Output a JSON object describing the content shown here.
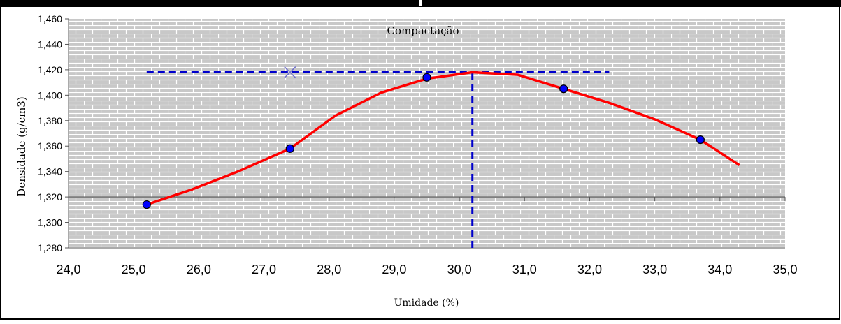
{
  "chart_data": {
    "type": "line",
    "title": "Compactação",
    "xlabel": "Umidade (%)",
    "ylabel": "Densidade (g/cm3)",
    "xlim": [
      24.0,
      35.0
    ],
    "ylim": [
      1.28,
      1.46
    ],
    "x_ticks": [
      24.0,
      25.0,
      26.0,
      27.0,
      28.0,
      29.0,
      30.0,
      31.0,
      32.0,
      33.0,
      34.0,
      35.0
    ],
    "y_ticks": [
      1.28,
      1.3,
      1.32,
      1.34,
      1.36,
      1.38,
      1.4,
      1.42,
      1.44,
      1.46
    ],
    "x_tick_labels": [
      "24,0",
      "25,0",
      "26,0",
      "27,0",
      "28,0",
      "29,0",
      "30,0",
      "31,0",
      "32,0",
      "33,0",
      "34,0",
      "35,0"
    ],
    "y_tick_labels": [
      "1,280",
      "1,300",
      "1,320",
      "1,340",
      "1,360",
      "1,380",
      "1,400",
      "1,420",
      "1,440",
      "1,460"
    ],
    "grid": false,
    "background": "brick-pattern",
    "series": [
      {
        "kind": "curve",
        "color": "#ff0000",
        "x": [
          25.2,
          25.9,
          26.6,
          27.4,
          28.1,
          28.8,
          29.5,
          30.2,
          30.9,
          31.6,
          32.3,
          33.0,
          33.7,
          34.3
        ],
        "y": [
          1.314,
          1.326,
          1.34,
          1.358,
          1.384,
          1.402,
          1.413,
          1.418,
          1.416,
          1.405,
          1.394,
          1.381,
          1.365,
          1.345
        ]
      },
      {
        "kind": "points",
        "marker_color": "#0000ff",
        "x": [
          25.2,
          27.4,
          29.5,
          31.6,
          33.7
        ],
        "y": [
          1.314,
          1.358,
          1.414,
          1.405,
          1.365
        ]
      },
      {
        "kind": "reference-line",
        "color": "#0000cc",
        "style": "dashed",
        "x": [
          25.2,
          32.3
        ],
        "y": [
          1.418,
          1.418
        ]
      },
      {
        "kind": "reference-line",
        "color": "#0000cc",
        "style": "dashed",
        "x": [
          30.2,
          30.2
        ],
        "y": [
          1.28,
          1.42
        ]
      },
      {
        "kind": "marker",
        "color": "#7070cc",
        "shape": "x",
        "x": [
          27.4
        ],
        "y": [
          1.418
        ]
      }
    ],
    "horizontal_axis_line_y": 1.32
  }
}
